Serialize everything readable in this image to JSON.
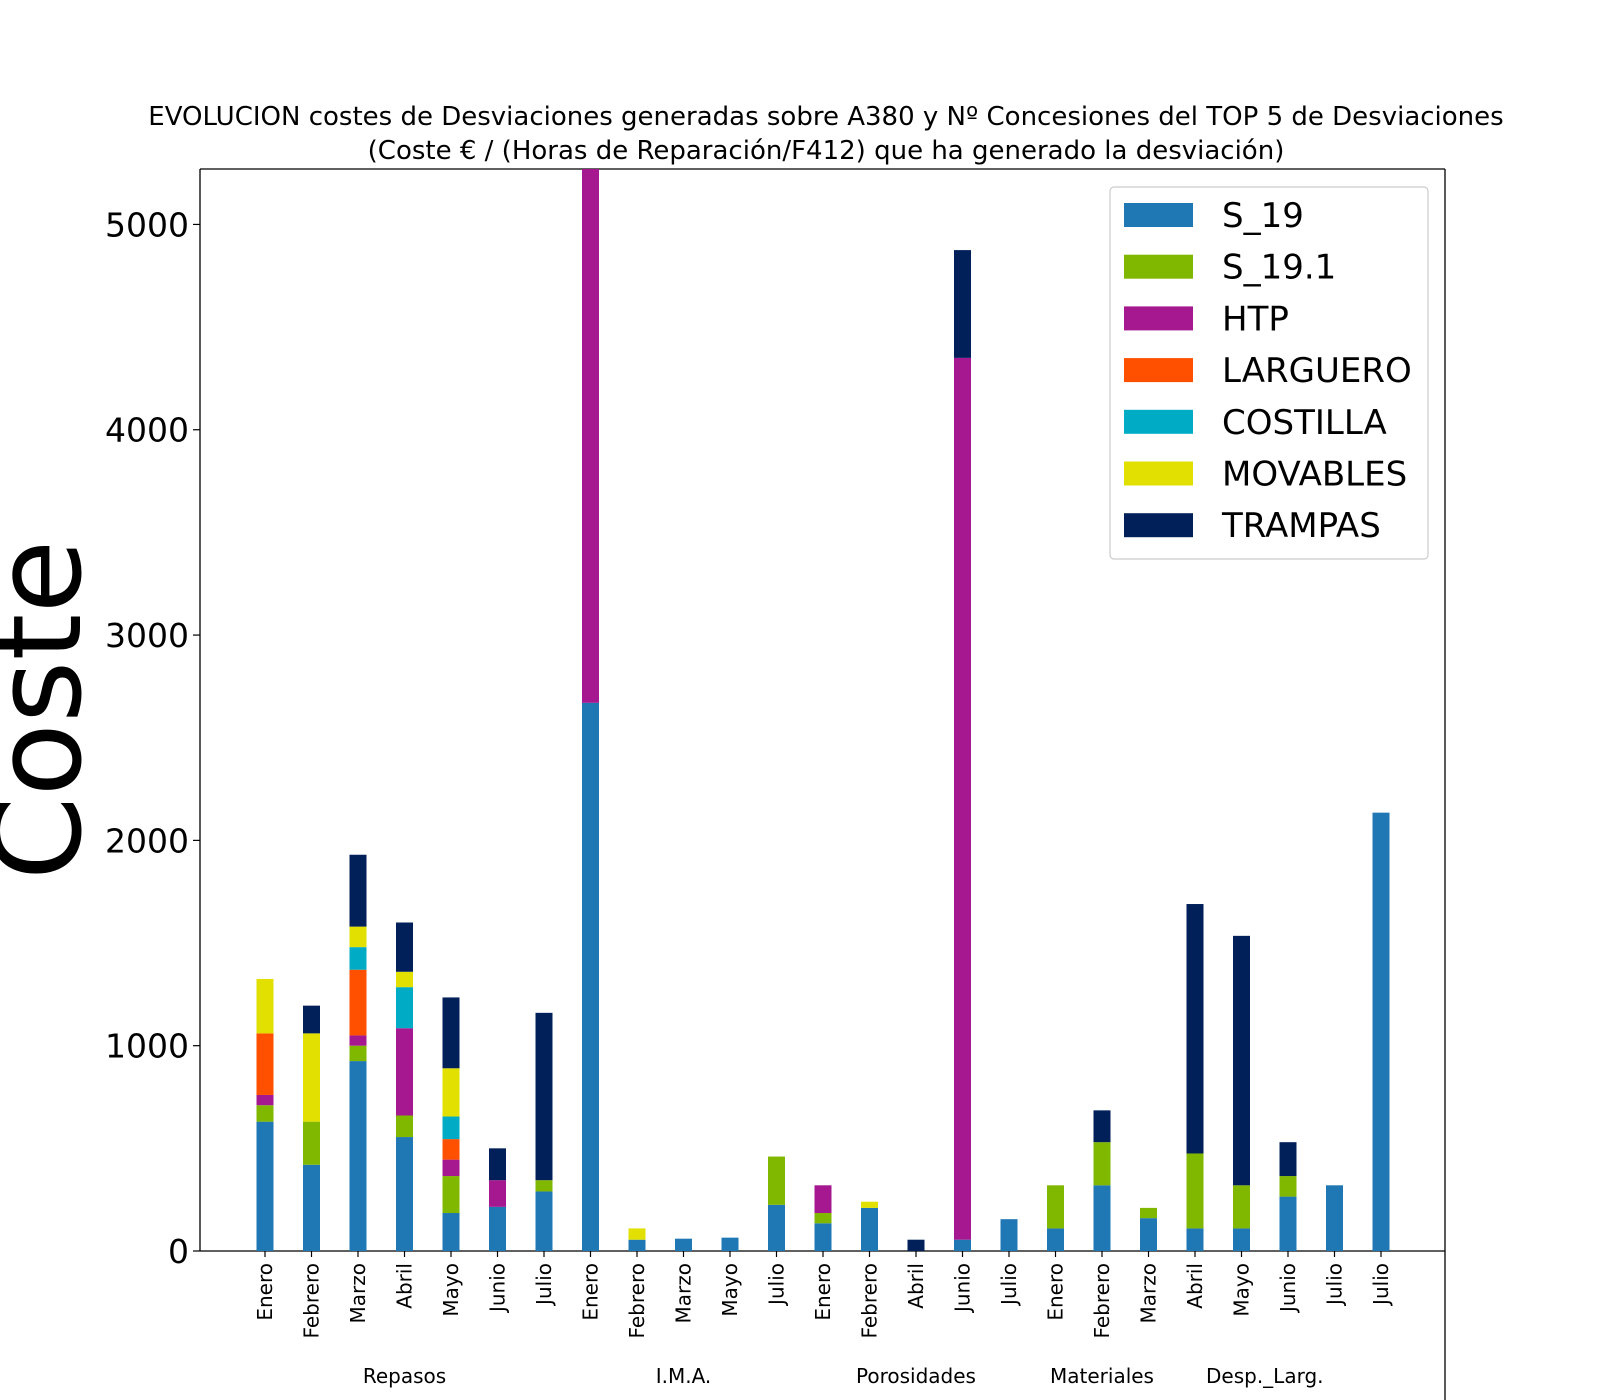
{
  "chart_data": {
    "type": "bar",
    "stacked": true,
    "title_lines": [
      "EVOLUCION costes de Desviaciones  generadas sobre A380 y Nº Concesiones del TOP 5 de Desviaciones",
      "(Coste € / (Horas de Reparación/F412) que ha generado la desviación)"
    ],
    "ylabel": "Coste",
    "xlabel": "",
    "ylim": [
      0,
      5270
    ],
    "yticks": [
      0,
      1000,
      2000,
      3000,
      4000,
      5000
    ],
    "legend_position": "top-right",
    "categories": [
      "Enero",
      "Febrero",
      "Marzo",
      "Abril",
      "Mayo",
      "Junio",
      "Julio",
      "Enero",
      "Febrero",
      "Marzo",
      "Mayo",
      "Julio",
      "Enero",
      "Febrero",
      "Abril",
      "Junio",
      "Julio",
      "Enero",
      "Febrero",
      "Marzo",
      "Abril",
      "Mayo",
      "Junio",
      "Julio",
      "Julio"
    ],
    "groups": [
      {
        "label": "Repasos",
        "start": 0,
        "end": 6
      },
      {
        "label": "I.M.A.",
        "start": 7,
        "end": 11
      },
      {
        "label": "Porosidades",
        "start": 12,
        "end": 16
      },
      {
        "label": "Materiales",
        "start": 17,
        "end": 19
      },
      {
        "label": "Desp._Larg.",
        "start": 20,
        "end": 23
      }
    ],
    "series": [
      {
        "name": "S_19",
        "color": "#1f77b4",
        "values": [
          630,
          420,
          925,
          555,
          185,
          215,
          290,
          2670,
          55,
          60,
          65,
          225,
          135,
          210,
          0,
          55,
          155,
          110,
          320,
          160,
          110,
          110,
          265,
          320,
          2135
        ]
      },
      {
        "name": "S_19.1",
        "color": "#80b800",
        "values": [
          80,
          210,
          75,
          105,
          180,
          0,
          55,
          0,
          0,
          0,
          0,
          235,
          50,
          0,
          0,
          0,
          0,
          210,
          210,
          50,
          365,
          210,
          100,
          0,
          0
        ]
      },
      {
        "name": "HTP",
        "color": "#a5188f",
        "values": [
          50,
          0,
          50,
          425,
          80,
          130,
          0,
          2600,
          0,
          0,
          0,
          0,
          135,
          0,
          0,
          4295,
          0,
          0,
          0,
          0,
          0,
          0,
          0,
          0,
          0
        ]
      },
      {
        "name": "LARGUERO",
        "color": "#ff5000",
        "values": [
          300,
          0,
          320,
          0,
          100,
          0,
          0,
          0,
          0,
          0,
          0,
          0,
          0,
          0,
          0,
          0,
          0,
          0,
          0,
          0,
          0,
          0,
          0,
          0,
          0
        ]
      },
      {
        "name": "COSTILLA",
        "color": "#00abc6",
        "values": [
          0,
          0,
          110,
          200,
          110,
          0,
          0,
          0,
          0,
          0,
          0,
          0,
          0,
          0,
          0,
          0,
          0,
          0,
          0,
          0,
          0,
          0,
          0,
          0,
          0
        ]
      },
      {
        "name": "MOVABLES",
        "color": "#e1e000",
        "values": [
          265,
          430,
          100,
          75,
          235,
          0,
          0,
          0,
          55,
          0,
          0,
          0,
          0,
          30,
          0,
          0,
          0,
          0,
          0,
          0,
          0,
          0,
          0,
          0,
          0
        ]
      },
      {
        "name": "TRAMPAS",
        "color": "#01205a",
        "values": [
          0,
          135,
          350,
          240,
          345,
          155,
          815,
          0,
          0,
          0,
          0,
          0,
          0,
          0,
          55,
          525,
          0,
          0,
          155,
          0,
          1215,
          1215,
          165,
          0,
          0
        ]
      }
    ]
  }
}
